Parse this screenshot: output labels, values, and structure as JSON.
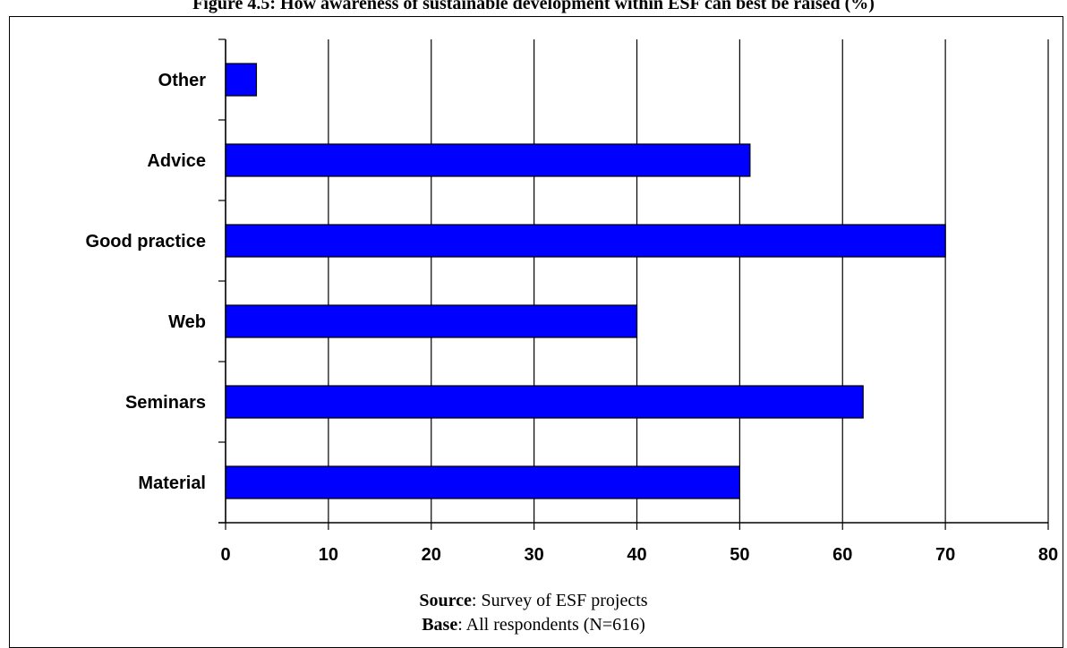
{
  "chart_data": {
    "type": "bar",
    "orientation": "horizontal",
    "title": "Figure 4.5: How awareness of sustainable development within ESF can best be raised (%)",
    "categories": [
      "Material",
      "Seminars",
      "Web",
      "Good practice",
      "Advice",
      "Other"
    ],
    "values": [
      50,
      62,
      40,
      70,
      51,
      3
    ],
    "xlim": [
      0,
      80
    ],
    "xticks": [
      0,
      10,
      20,
      30,
      40,
      50,
      60,
      70,
      80
    ],
    "grid": "vertical",
    "bar_color": "#0000ff",
    "xlabel": "",
    "ylabel": ""
  },
  "notes": {
    "source_label": "Source",
    "source_text": ": Survey of ESF projects",
    "base_label": "Base",
    "base_text": ": All respondents (N=616)"
  }
}
